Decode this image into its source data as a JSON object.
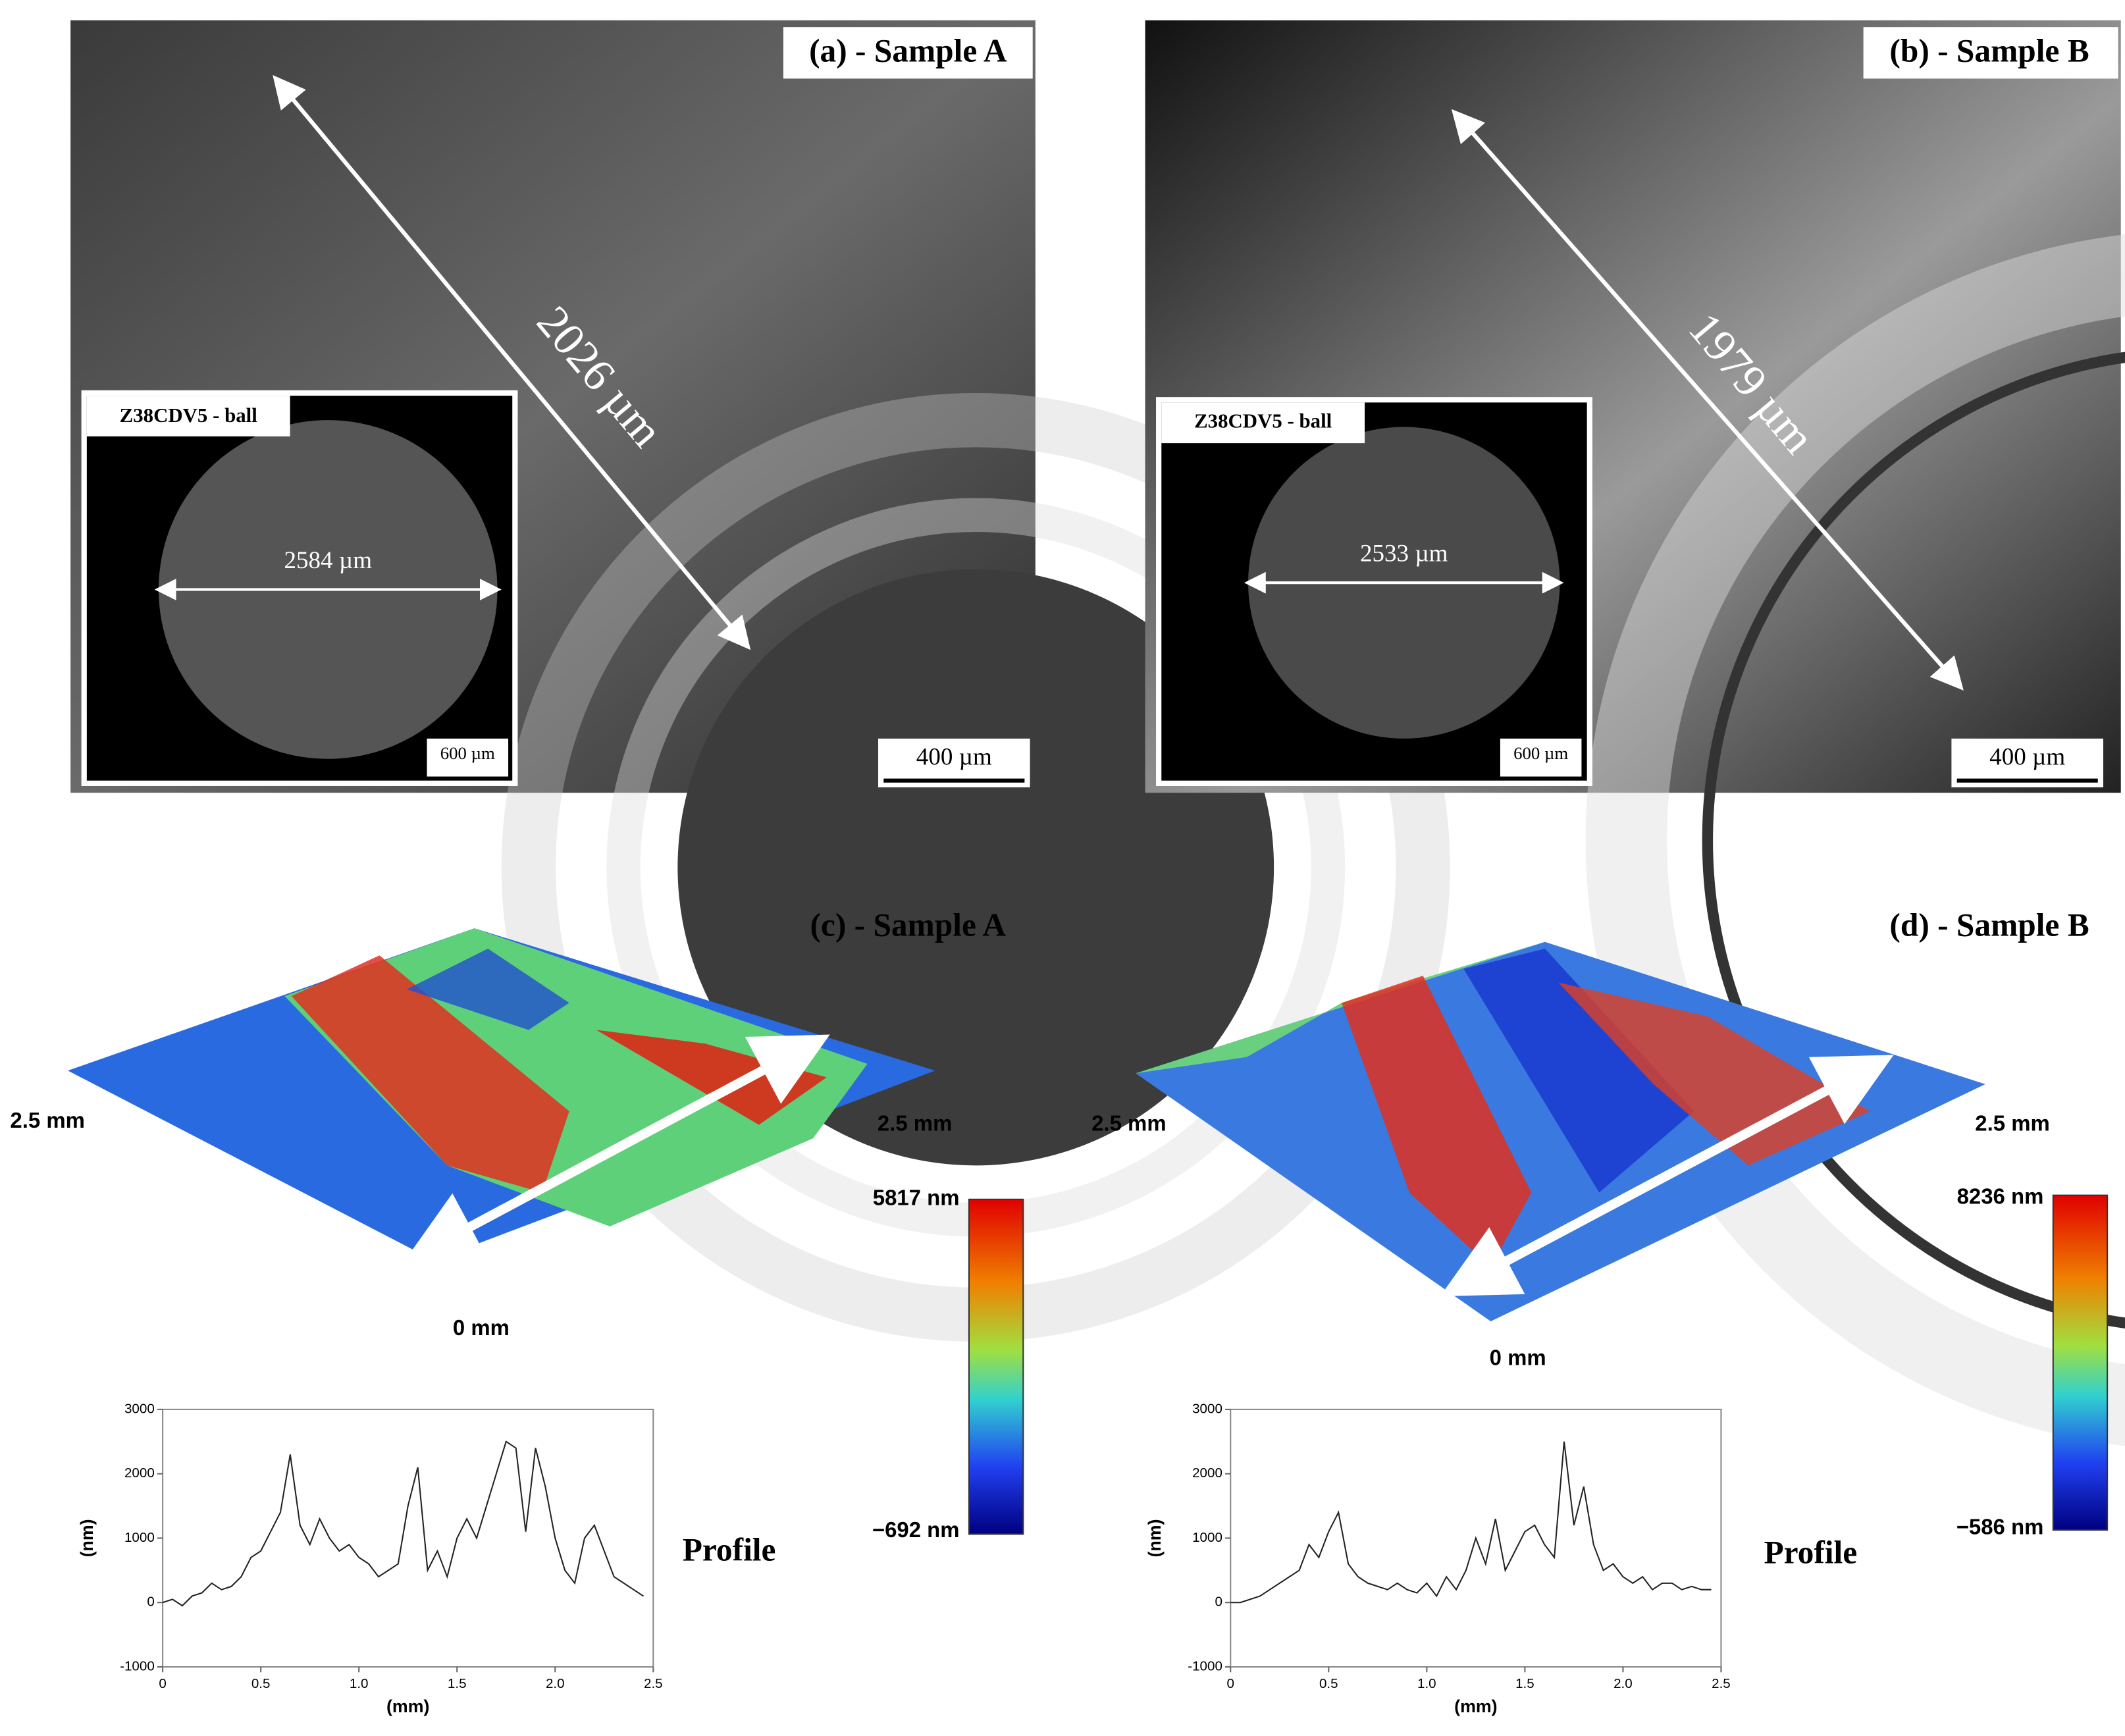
{
  "panels": [
    {
      "label": "(a) - Sample A",
      "measure": "2026 µm",
      "inset_label": "Z38CDV5 - ball",
      "inset_measure": "2584 µm",
      "inset_scale": "600 µm",
      "scale": "400 µm"
    },
    {
      "label": "(b) - Sample B",
      "measure": "1979 µm",
      "inset_label": "Z38CDV5 - ball",
      "inset_measure": "2533 µm",
      "inset_scale": "600 µm",
      "scale": "400 µm"
    },
    {
      "label": "(c) - Sample A",
      "left_axis": "2.5 mm",
      "right_axis": "2.5 mm",
      "bottom_axis": "0 mm",
      "colorbar_max": "5817 nm",
      "colorbar_min": "−692 nm",
      "profile_label": "Profile"
    },
    {
      "label": "(d) - Sample B",
      "left_axis": "2.5 mm",
      "right_axis": "2.5 mm",
      "bottom_axis": "0 mm",
      "colorbar_max": "8236 nm",
      "colorbar_min": "−586 nm",
      "profile_label": "Profile"
    }
  ],
  "chart_data": [
    {
      "type": "line",
      "xlabel": "(mm)",
      "ylabel": "(nm)",
      "color": "#222222",
      "x": [
        0,
        0.05,
        0.1,
        0.15,
        0.2,
        0.25,
        0.3,
        0.35,
        0.4,
        0.45,
        0.5,
        0.55,
        0.6,
        0.65,
        0.7,
        0.75,
        0.8,
        0.85,
        0.9,
        0.95,
        1,
        1.05,
        1.1,
        1.15,
        1.2,
        1.25,
        1.3,
        1.35,
        1.4,
        1.45,
        1.5,
        1.55,
        1.6,
        1.65,
        1.7,
        1.75,
        1.8,
        1.85,
        1.9,
        1.95,
        2,
        2.05,
        2.1,
        2.15,
        2.2,
        2.25,
        2.3,
        2.35,
        2.4,
        2.45
      ],
      "values": [
        0,
        50,
        -50,
        100,
        150,
        300,
        200,
        250,
        400,
        700,
        800,
        1100,
        1400,
        2300,
        1200,
        900,
        1300,
        1000,
        800,
        900,
        700,
        600,
        400,
        500,
        600,
        1500,
        2100,
        500,
        800,
        400,
        1000,
        1300,
        1000,
        1500,
        2000,
        2500,
        2400,
        1100,
        2400,
        1800,
        1000,
        500,
        300,
        1000,
        1200,
        800,
        400,
        300,
        200,
        100
      ],
      "xlim": [
        0,
        2.5
      ],
      "xticks": [
        0,
        0.5,
        {
          "value": 1,
          "label": "1.0"
        },
        1.5,
        {
          "value": 2,
          "label": "2.0"
        },
        2.5
      ],
      "ylim": [
        -1000,
        3000
      ],
      "yticks": [
        -1000,
        0,
        1000,
        2000,
        3000
      ]
    },
    {
      "type": "line",
      "xlabel": "(mm)",
      "ylabel": "(nm)",
      "color": "#222222",
      "x": [
        0,
        0.05,
        0.1,
        0.15,
        0.2,
        0.25,
        0.3,
        0.35,
        0.4,
        0.45,
        0.5,
        0.55,
        0.6,
        0.65,
        0.7,
        0.75,
        0.8,
        0.85,
        0.9,
        0.95,
        1,
        1.05,
        1.1,
        1.15,
        1.2,
        1.25,
        1.3,
        1.35,
        1.4,
        1.45,
        1.5,
        1.55,
        1.6,
        1.65,
        1.7,
        1.75,
        1.8,
        1.85,
        1.9,
        1.95,
        2,
        2.05,
        2.1,
        2.15,
        2.2,
        2.25,
        2.3,
        2.35,
        2.4,
        2.45
      ],
      "values": [
        0,
        0,
        50,
        100,
        200,
        300,
        400,
        500,
        900,
        700,
        1100,
        1400,
        600,
        400,
        300,
        250,
        200,
        300,
        200,
        150,
        300,
        100,
        400,
        200,
        500,
        1000,
        600,
        1300,
        500,
        800,
        1100,
        1200,
        900,
        700,
        2500,
        1200,
        1800,
        900,
        500,
        600,
        400,
        300,
        400,
        200,
        300,
        300,
        200,
        250,
        200,
        200
      ],
      "xlim": [
        0,
        2.5
      ],
      "xticks": [
        0,
        0.5,
        {
          "value": 1,
          "label": "1.0"
        },
        1.5,
        {
          "value": 2,
          "label": "2.0"
        },
        2.5
      ],
      "ylim": [
        -1000,
        3000
      ],
      "yticks": [
        -1000,
        0,
        1000,
        2000,
        3000
      ]
    }
  ]
}
